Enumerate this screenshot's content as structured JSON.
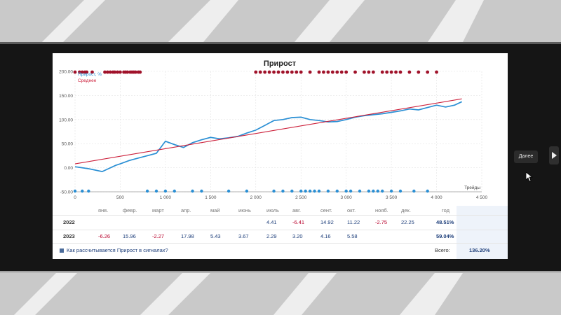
{
  "ui": {
    "next_button": "Далее"
  },
  "chart_data": {
    "type": "line",
    "title": "Прирост",
    "xlabel": "Трейды",
    "ylim": [
      -50,
      200
    ],
    "xlim": [
      0,
      4500
    ],
    "yticks": [
      "200.00",
      "150.00",
      "100.00",
      "50.00",
      "0.00",
      "-50.00"
    ],
    "xticks": [
      "0",
      "500",
      "1 000",
      "1 500",
      "2 000",
      "2 500",
      "3 000",
      "3 500",
      "4 000",
      "4 500"
    ],
    "legend_position": "top-left",
    "grid": true,
    "series": [
      {
        "name": "Прирост, %",
        "color": "#2a8fd4",
        "x": [
          0,
          150,
          300,
          450,
          500,
          600,
          700,
          800,
          900,
          1000,
          1100,
          1200,
          1300,
          1400,
          1500,
          1600,
          1700,
          1800,
          1900,
          2000,
          2100,
          2200,
          2300,
          2400,
          2500,
          2600,
          2700,
          2800,
          2900,
          3000,
          3100,
          3200,
          3300,
          3400,
          3500,
          3600,
          3700,
          3800,
          3900,
          4000,
          4100,
          4200,
          4280
        ],
        "y": [
          2,
          -2,
          -8,
          5,
          8,
          15,
          20,
          25,
          30,
          55,
          48,
          42,
          52,
          58,
          63,
          60,
          62,
          65,
          72,
          78,
          88,
          98,
          100,
          104,
          105,
          100,
          98,
          95,
          96,
          100,
          105,
          108,
          110,
          112,
          115,
          118,
          122,
          120,
          125,
          130,
          126,
          130,
          137
        ]
      },
      {
        "name": "Среднее",
        "color": "#cc1f3a",
        "x": [
          0,
          4280
        ],
        "y": [
          8,
          143
        ]
      }
    ],
    "markers": {
      "color_top": "#a0122a",
      "color_bottom": "#2a8fd4"
    }
  },
  "table": {
    "months": [
      "янв.",
      "февр.",
      "март",
      "апр.",
      "май",
      "июнь",
      "июль",
      "авг.",
      "сент.",
      "окт.",
      "нояб.",
      "дек.",
      "год"
    ],
    "rows": [
      {
        "year": "2022",
        "values": [
          "",
          "",
          "",
          "",
          "",
          "",
          "4.41",
          "-6.41",
          "14.92",
          "11.22",
          "-2.75",
          "22.25",
          "48.51%"
        ]
      },
      {
        "year": "2023",
        "values": [
          "-6.26",
          "15.96",
          "-2.27",
          "17.98",
          "5.43",
          "3.67",
          "2.29",
          "3.20",
          "4.16",
          "5.58",
          "",
          "",
          "59.04%"
        ]
      }
    ],
    "footer_link": "Как рассчитывается Прирост в сигналах?",
    "total_label": "Всего:",
    "total_value": "136.20%"
  }
}
